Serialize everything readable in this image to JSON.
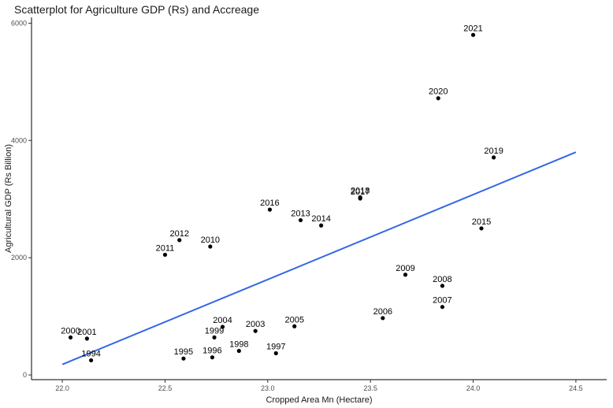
{
  "chart_data": {
    "type": "scatter",
    "title": "Scatterplot for Agriculture GDP (Rs) and Accreage",
    "xlabel": "Cropped Area Mn (Hectare)",
    "ylabel": "Agricultural GDP (Rs Billion)",
    "xlim": [
      21.85,
      24.65
    ],
    "ylim": [
      -80,
      6100
    ],
    "x_ticks": [
      "22.0",
      "22.5",
      "23.0",
      "23.5",
      "24.0",
      "24.5"
    ],
    "x_tick_values": [
      22.0,
      22.5,
      23.0,
      23.5,
      24.0,
      24.5
    ],
    "y_ticks": [
      "0",
      "2000",
      "4000",
      "6000"
    ],
    "y_tick_values": [
      0,
      2000,
      4000,
      6000
    ],
    "grid": false,
    "point_color": "#000000",
    "trend_color": "#3366e6",
    "trend_line": {
      "x": [
        22.0,
        24.5
      ],
      "y": [
        180,
        3800
      ]
    },
    "points": [
      {
        "label": "1994",
        "x": 22.14,
        "y": 250
      },
      {
        "label": "1995",
        "x": 22.59,
        "y": 280
      },
      {
        "label": "1996",
        "x": 22.73,
        "y": 300
      },
      {
        "label": "1997",
        "x": 23.04,
        "y": 370
      },
      {
        "label": "1998",
        "x": 22.86,
        "y": 410
      },
      {
        "label": "1999",
        "x": 22.74,
        "y": 640
      },
      {
        "label": "2000",
        "x": 22.04,
        "y": 640
      },
      {
        "label": "2001",
        "x": 22.12,
        "y": 620
      },
      {
        "label": "2003",
        "x": 22.94,
        "y": 750
      },
      {
        "label": "2004",
        "x": 22.78,
        "y": 820
      },
      {
        "label": "2005",
        "x": 23.13,
        "y": 830
      },
      {
        "label": "2006",
        "x": 23.56,
        "y": 970
      },
      {
        "label": "2007",
        "x": 23.85,
        "y": 1160
      },
      {
        "label": "2008",
        "x": 23.85,
        "y": 1520
      },
      {
        "label": "2009",
        "x": 23.67,
        "y": 1710
      },
      {
        "label": "2010",
        "x": 22.72,
        "y": 2190
      },
      {
        "label": "2011",
        "x": 22.5,
        "y": 2050
      },
      {
        "label": "2012",
        "x": 22.57,
        "y": 2300
      },
      {
        "label": "2013",
        "x": 23.16,
        "y": 2640
      },
      {
        "label": "2014",
        "x": 23.26,
        "y": 2550
      },
      {
        "label": "2015",
        "x": 24.04,
        "y": 2500
      },
      {
        "label": "2016",
        "x": 23.01,
        "y": 2820
      },
      {
        "label": "2017",
        "x": 23.45,
        "y": 3010
      },
      {
        "label": "2018",
        "x": 23.45,
        "y": 3030
      },
      {
        "label": "2019",
        "x": 24.1,
        "y": 3710
      },
      {
        "label": "2020",
        "x": 23.83,
        "y": 4720
      },
      {
        "label": "2021",
        "x": 24.0,
        "y": 5800
      }
    ]
  }
}
